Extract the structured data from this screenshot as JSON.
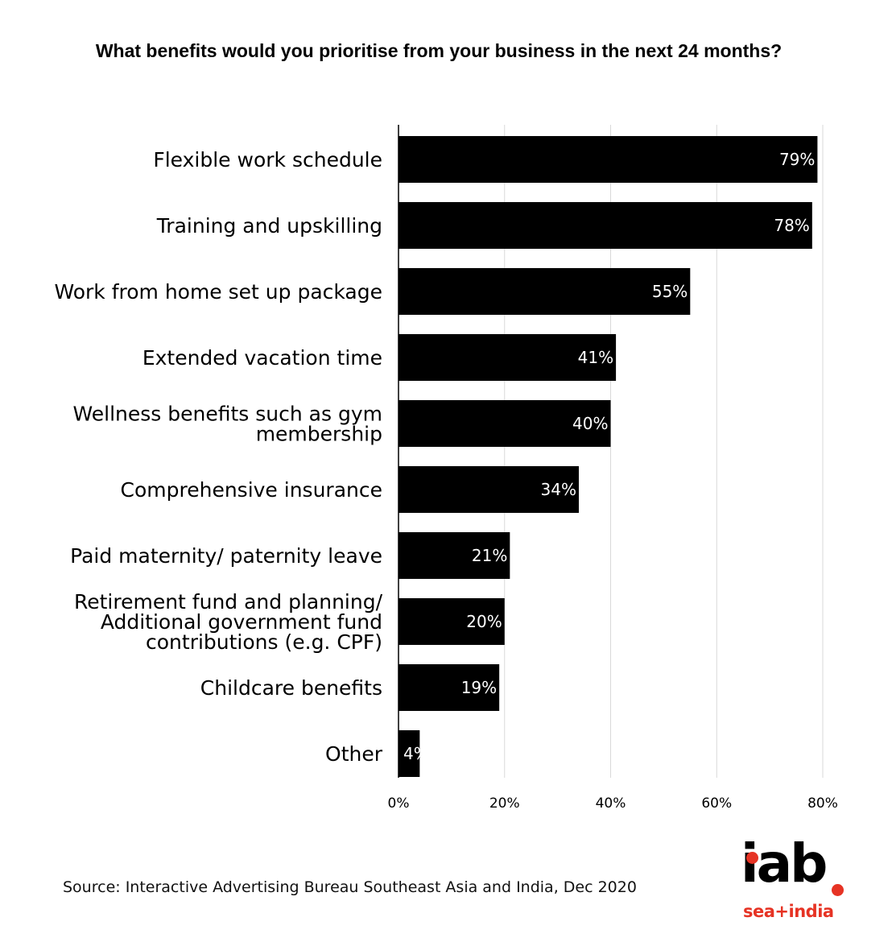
{
  "chart_data": {
    "type": "bar",
    "orientation": "horizontal",
    "title": "What benefits would you prioritise from your business in the next 24 months?",
    "categories": [
      "Flexible work schedule",
      "Training and upskilling",
      "Work from home set up package",
      "Extended vacation time",
      "Wellness benefits such as gym membership",
      "Comprehensive insurance",
      "Paid maternity/ paternity leave",
      "Retirement fund and planning/ Additional government fund contributions (e.g. CPF)",
      "Childcare benefits",
      "Other"
    ],
    "category_lines": [
      [
        "Flexible work schedule"
      ],
      [
        "Training and upskilling"
      ],
      [
        "Work from home set up package"
      ],
      [
        "Extended vacation time"
      ],
      [
        "Wellness benefits such as gym",
        "membership"
      ],
      [
        "Comprehensive insurance"
      ],
      [
        "Paid maternity/ paternity leave"
      ],
      [
        "Retirement fund and planning/",
        "Additional government fund",
        "contributions (e.g. CPF)"
      ],
      [
        "Childcare benefits"
      ],
      [
        "Other"
      ]
    ],
    "values": [
      79,
      78,
      55,
      41,
      40,
      34,
      21,
      20,
      19,
      4
    ],
    "data_labels": [
      "79%",
      "78%",
      "55%",
      "41%",
      "40%",
      "34%",
      "21%",
      "20%",
      "19%",
      "4%"
    ],
    "xlim": [
      0,
      80
    ],
    "xticks": [
      0,
      20,
      40,
      60,
      80
    ],
    "xtick_labels": [
      "0%",
      "20%",
      "40%",
      "60%",
      "80%"
    ],
    "grid": true,
    "bar_color": "#000000",
    "grid_color": "#d9d9d9",
    "label_color": "#ffffff"
  },
  "footer": {
    "source": "Source: Interactive Advertising Bureau Southeast Asia and India, Dec 2020"
  },
  "logo": {
    "main_text": "iab",
    "sub_text": "sea+india",
    "accent_color": "#e63324"
  }
}
